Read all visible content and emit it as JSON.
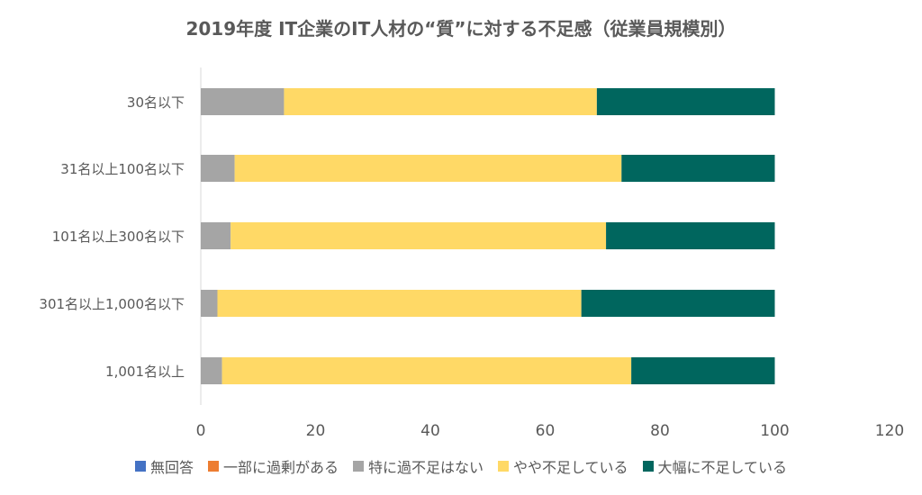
{
  "chart_data": {
    "type": "bar",
    "orientation": "horizontal",
    "stacked": true,
    "title": "2019年度 IT企業のIT人材の“質”に対する不足感（従業員規模別）",
    "categories": [
      "30名以下",
      "31名以上100名以下",
      "101名以上300名以下",
      "301名以上1,000名以下",
      "1,001名以上"
    ],
    "xlim": [
      0,
      120
    ],
    "x_ticks": [
      "0",
      "20",
      "40",
      "60",
      "80",
      "100",
      "120"
    ],
    "grid": false,
    "legend_position": "bottom",
    "series": [
      {
        "name": "無回答",
        "color": "#4472C4",
        "values": [
          0,
          0,
          0,
          0,
          0
        ]
      },
      {
        "name": "一部に過剰がある",
        "color": "#ED7D31",
        "values": [
          0,
          0,
          0,
          0,
          0
        ]
      },
      {
        "name": "特に過不足はない",
        "color": "#A5A5A5",
        "values": [
          14.5,
          5.9,
          5.2,
          2.9,
          3.7
        ]
      },
      {
        "name": "やや不足している",
        "color": "#FFD966",
        "values": [
          54.5,
          67.4,
          65.4,
          63.4,
          71.3
        ]
      },
      {
        "name": "大幅に不足している",
        "color": "#00665E",
        "values": [
          31.0,
          26.7,
          29.4,
          33.7,
          25.0
        ]
      }
    ]
  }
}
